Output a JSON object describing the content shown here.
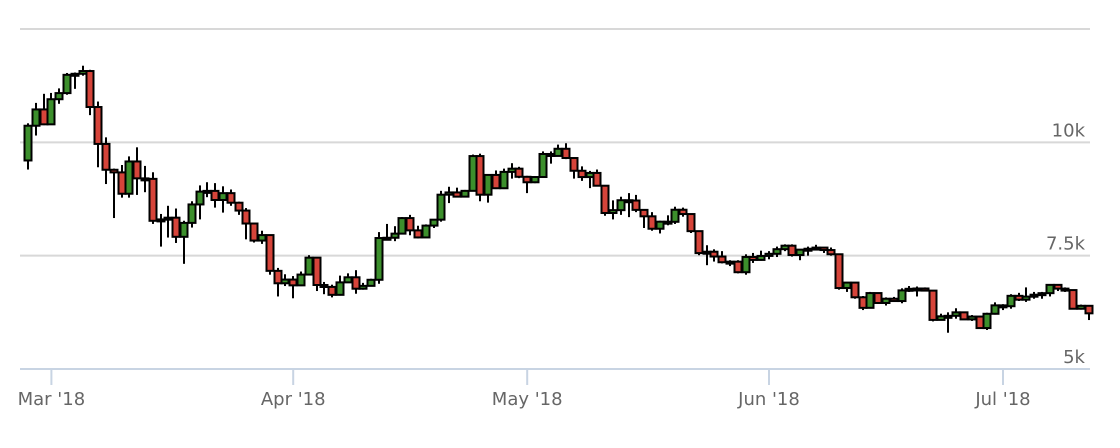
{
  "chart_data": {
    "type": "candlestick",
    "title": "",
    "xlabel": "",
    "ylabel": "",
    "ylim": [
      5000,
      12500
    ],
    "y_ticks": [
      {
        "value": 5000,
        "label": "5k"
      },
      {
        "value": 7500,
        "label": "7.5k"
      },
      {
        "value": 10000,
        "label": "10k"
      },
      {
        "value": 12500,
        "label": ""
      }
    ],
    "x_ticks": [
      {
        "date": "2018-03-01",
        "label": "Mar '18"
      },
      {
        "date": "2018-04-01",
        "label": "Apr '18"
      },
      {
        "date": "2018-05-01",
        "label": "May '18"
      },
      {
        "date": "2018-06-01",
        "label": "Jun '18"
      },
      {
        "date": "2018-07-01",
        "label": "Jul '18"
      }
    ],
    "grid": true,
    "colors": {
      "up": "#3c8f2c",
      "down": "#d6443a",
      "outline": "#000000",
      "grid": "#d8d8d8",
      "axis": "#c8d4e3"
    },
    "columns": [
      "date",
      "open",
      "high",
      "low",
      "close"
    ],
    "candles": [
      [
        "2018-02-26",
        9600,
        10420,
        9400,
        10366
      ],
      [
        "2018-02-27",
        10366,
        10870,
        10150,
        10726
      ],
      [
        "2018-02-28",
        10726,
        11070,
        10380,
        10397
      ],
      [
        "2018-03-01",
        10397,
        11090,
        10390,
        10951
      ],
      [
        "2018-03-02",
        10951,
        11190,
        10850,
        11086
      ],
      [
        "2018-03-03",
        11086,
        11530,
        11050,
        11489
      ],
      [
        "2018-03-04",
        11489,
        11540,
        11180,
        11512
      ],
      [
        "2018-03-05",
        11512,
        11690,
        11470,
        11573
      ],
      [
        "2018-03-06",
        11573,
        11600,
        10600,
        10779
      ],
      [
        "2018-03-07",
        10779,
        10900,
        9450,
        9965
      ],
      [
        "2018-03-08",
        9965,
        10110,
        9080,
        9395
      ],
      [
        "2018-03-09",
        9395,
        9420,
        8330,
        9337
      ],
      [
        "2018-03-10",
        9337,
        9500,
        8780,
        8866
      ],
      [
        "2018-03-11",
        8866,
        9690,
        8780,
        9578
      ],
      [
        "2018-03-12",
        9578,
        9890,
        8840,
        9205
      ],
      [
        "2018-03-13",
        9205,
        9480,
        8900,
        9194
      ],
      [
        "2018-03-14",
        9194,
        9340,
        8200,
        8269
      ],
      [
        "2018-03-15",
        8269,
        8420,
        7700,
        8300
      ],
      [
        "2018-03-16",
        8300,
        8600,
        7900,
        8338
      ],
      [
        "2018-03-17",
        8338,
        8540,
        7780,
        7916
      ],
      [
        "2018-03-18",
        7916,
        8270,
        7320,
        8223
      ],
      [
        "2018-03-19",
        8223,
        8700,
        8120,
        8630
      ],
      [
        "2018-03-20",
        8630,
        9050,
        8300,
        8913
      ],
      [
        "2018-03-21",
        8913,
        9120,
        8790,
        8929
      ],
      [
        "2018-03-22",
        8929,
        9100,
        8560,
        8728
      ],
      [
        "2018-03-23",
        8728,
        9030,
        8450,
        8879
      ],
      [
        "2018-03-24",
        8879,
        8960,
        8600,
        8668
      ],
      [
        "2018-03-25",
        8668,
        8690,
        8400,
        8495
      ],
      [
        "2018-03-26",
        8495,
        8550,
        7860,
        8209
      ],
      [
        "2018-03-27",
        8209,
        8210,
        7790,
        7833
      ],
      [
        "2018-03-28",
        7833,
        8050,
        7760,
        7954
      ],
      [
        "2018-03-29",
        7954,
        7960,
        7080,
        7165
      ],
      [
        "2018-03-30",
        7165,
        7230,
        6600,
        6891
      ],
      [
        "2018-03-31",
        6891,
        7090,
        6830,
        6973
      ],
      [
        "2018-04-01",
        6973,
        7050,
        6560,
        6845
      ],
      [
        "2018-04-02",
        6845,
        7150,
        6830,
        7083
      ],
      [
        "2018-04-03",
        7083,
        7510,
        7070,
        7456
      ],
      [
        "2018-04-04",
        7456,
        7460,
        6720,
        6853
      ],
      [
        "2018-04-05",
        6853,
        6920,
        6650,
        6811
      ],
      [
        "2018-04-06",
        6811,
        6860,
        6580,
        6636
      ],
      [
        "2018-04-07",
        6636,
        7060,
        6620,
        6911
      ],
      [
        "2018-04-08",
        6911,
        7110,
        6900,
        7023
      ],
      [
        "2018-04-09",
        7023,
        7180,
        6660,
        6771
      ],
      [
        "2018-04-10",
        6771,
        6900,
        6750,
        6834
      ],
      [
        "2018-04-11",
        6834,
        6990,
        6820,
        6968
      ],
      [
        "2018-04-12",
        6968,
        8020,
        6880,
        7889
      ],
      [
        "2018-04-13",
        7889,
        8200,
        7850,
        7895
      ],
      [
        "2018-04-14",
        7895,
        8150,
        7820,
        7986
      ],
      [
        "2018-04-15",
        7986,
        8350,
        7980,
        8329
      ],
      [
        "2018-04-16",
        8329,
        8400,
        7950,
        8058
      ],
      [
        "2018-04-17",
        8058,
        8160,
        7880,
        7902
      ],
      [
        "2018-04-18",
        7902,
        8190,
        7890,
        8163
      ],
      [
        "2018-04-19",
        8163,
        8300,
        8110,
        8294
      ],
      [
        "2018-04-20",
        8294,
        8930,
        8250,
        8845
      ],
      [
        "2018-04-21",
        8845,
        9020,
        8660,
        8895
      ],
      [
        "2018-04-22",
        8895,
        9000,
        8800,
        8802
      ],
      [
        "2018-04-23",
        8802,
        8950,
        8800,
        8930
      ],
      [
        "2018-04-24",
        8930,
        9730,
        8930,
        9697
      ],
      [
        "2018-04-25",
        9697,
        9750,
        8700,
        8845
      ],
      [
        "2018-04-26",
        8845,
        9300,
        8670,
        9281
      ],
      [
        "2018-04-27",
        9281,
        9380,
        8970,
        8987
      ],
      [
        "2018-04-28",
        8987,
        9420,
        8970,
        9348
      ],
      [
        "2018-04-29",
        9348,
        9540,
        9200,
        9419
      ],
      [
        "2018-04-30",
        9419,
        9460,
        9210,
        9240
      ],
      [
        "2018-05-01",
        9240,
        9260,
        8880,
        9119
      ],
      [
        "2018-05-02",
        9119,
        9250,
        9100,
        9235
      ],
      [
        "2018-05-03",
        9235,
        9800,
        9220,
        9743
      ],
      [
        "2018-05-04",
        9743,
        9800,
        9530,
        9700
      ],
      [
        "2018-05-05",
        9700,
        9950,
        9690,
        9858
      ],
      [
        "2018-05-06",
        9858,
        9980,
        9630,
        9654
      ],
      [
        "2018-05-07",
        9654,
        9660,
        9200,
        9373
      ],
      [
        "2018-05-08",
        9373,
        9470,
        9150,
        9234
      ],
      [
        "2018-05-09",
        9234,
        9370,
        8990,
        9325
      ],
      [
        "2018-05-10",
        9325,
        9400,
        9030,
        9043
      ],
      [
        "2018-05-11",
        9043,
        9050,
        8380,
        8441
      ],
      [
        "2018-05-12",
        8441,
        8720,
        8300,
        8504
      ],
      [
        "2018-05-13",
        8504,
        8800,
        8400,
        8723
      ],
      [
        "2018-05-14",
        8723,
        8880,
        8350,
        8716
      ],
      [
        "2018-05-15",
        8716,
        8840,
        8460,
        8510
      ],
      [
        "2018-05-16",
        8510,
        8520,
        8110,
        8368
      ],
      [
        "2018-05-17",
        8368,
        8460,
        8050,
        8094
      ],
      [
        "2018-05-18",
        8094,
        8270,
        7990,
        8250
      ],
      [
        "2018-05-19",
        8250,
        8390,
        8170,
        8247
      ],
      [
        "2018-05-20",
        8247,
        8580,
        8200,
        8513
      ],
      [
        "2018-05-21",
        8513,
        8560,
        8360,
        8418
      ],
      [
        "2018-05-22",
        8418,
        8420,
        8000,
        8041
      ],
      [
        "2018-05-23",
        8041,
        8050,
        7510,
        7557
      ],
      [
        "2018-05-24",
        7557,
        7730,
        7290,
        7587
      ],
      [
        "2018-05-25",
        7587,
        7640,
        7370,
        7481
      ],
      [
        "2018-05-26",
        7481,
        7600,
        7330,
        7355
      ],
      [
        "2018-05-27",
        7355,
        7400,
        7270,
        7368
      ],
      [
        "2018-05-28",
        7368,
        7400,
        7110,
        7135
      ],
      [
        "2018-05-29",
        7135,
        7530,
        7080,
        7472
      ],
      [
        "2018-05-30",
        7472,
        7560,
        7340,
        7406
      ],
      [
        "2018-05-31",
        7406,
        7610,
        7390,
        7494
      ],
      [
        "2018-06-01",
        7494,
        7600,
        7420,
        7541
      ],
      [
        "2018-06-02",
        7541,
        7700,
        7470,
        7643
      ],
      [
        "2018-06-03",
        7643,
        7750,
        7600,
        7720
      ],
      [
        "2018-06-04",
        7720,
        7750,
        7480,
        7514
      ],
      [
        "2018-06-05",
        7514,
        7640,
        7400,
        7633
      ],
      [
        "2018-06-06",
        7633,
        7700,
        7500,
        7653
      ],
      [
        "2018-06-07",
        7653,
        7740,
        7620,
        7678
      ],
      [
        "2018-06-08",
        7678,
        7690,
        7560,
        7624
      ],
      [
        "2018-06-09",
        7624,
        7680,
        7500,
        7531
      ],
      [
        "2018-06-10",
        7531,
        7540,
        6750,
        6786
      ],
      [
        "2018-06-11",
        6786,
        6920,
        6700,
        6906
      ],
      [
        "2018-06-12",
        6906,
        6910,
        6550,
        6582
      ],
      [
        "2018-06-13",
        6582,
        6610,
        6300,
        6349
      ],
      [
        "2018-06-14",
        6349,
        6700,
        6340,
        6675
      ],
      [
        "2018-06-15",
        6675,
        6680,
        6440,
        6456
      ],
      [
        "2018-06-16",
        6456,
        6580,
        6400,
        6550
      ],
      [
        "2018-06-17",
        6550,
        6590,
        6490,
        6499
      ],
      [
        "2018-06-18",
        6499,
        6780,
        6450,
        6734
      ],
      [
        "2018-06-19",
        6734,
        6830,
        6700,
        6769
      ],
      [
        "2018-06-20",
        6769,
        6820,
        6600,
        6776
      ],
      [
        "2018-06-21",
        6776,
        6800,
        6710,
        6729
      ],
      [
        "2018-06-22",
        6729,
        6740,
        6050,
        6083
      ],
      [
        "2018-06-23",
        6083,
        6220,
        6070,
        6162
      ],
      [
        "2018-06-24",
        6162,
        6250,
        5800,
        6173
      ],
      [
        "2018-06-25",
        6173,
        6340,
        6110,
        6250
      ],
      [
        "2018-06-26",
        6250,
        6260,
        6090,
        6094
      ],
      [
        "2018-06-27",
        6094,
        6190,
        6060,
        6157
      ],
      [
        "2018-06-28",
        6157,
        6170,
        5900,
        5903
      ],
      [
        "2018-06-29",
        5903,
        6240,
        5860,
        6218
      ],
      [
        "2018-06-30",
        6218,
        6470,
        6200,
        6404
      ],
      [
        "2018-07-01",
        6404,
        6430,
        6300,
        6385
      ],
      [
        "2018-07-02",
        6385,
        6650,
        6330,
        6614
      ],
      [
        "2018-07-03",
        6614,
        6680,
        6500,
        6529
      ],
      [
        "2018-07-04",
        6529,
        6800,
        6480,
        6597
      ],
      [
        "2018-07-05",
        6597,
        6700,
        6550,
        6639
      ],
      [
        "2018-07-06",
        6639,
        6700,
        6550,
        6673
      ],
      [
        "2018-07-07",
        6673,
        6860,
        6600,
        6856
      ],
      [
        "2018-07-08",
        6856,
        6860,
        6720,
        6773
      ],
      [
        "2018-07-09",
        6773,
        6800,
        6700,
        6741
      ],
      [
        "2018-07-10",
        6741,
        6750,
        6320,
        6329
      ],
      [
        "2018-07-11",
        6329,
        6420,
        6310,
        6394
      ],
      [
        "2018-07-12",
        6394,
        6400,
        6080,
        6228
      ]
    ]
  }
}
